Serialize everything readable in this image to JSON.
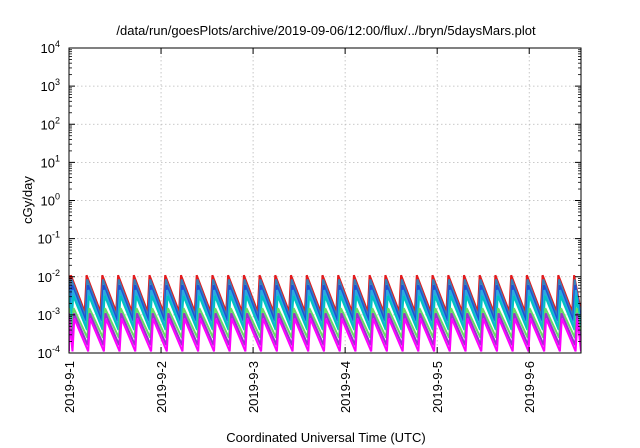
{
  "chart_data": {
    "type": "line",
    "title": "/data/run/goesPlots/archive/2019-09-06/12:00/flux/../bryn/5daysMars.plot",
    "xlabel": "Coordinated Universal Time (UTC)",
    "ylabel": "cGy/day",
    "y_scale": "log",
    "ylim": [
      0.0001,
      10000
    ],
    "y_ticks": [
      {
        "base": "10",
        "exp": "-4"
      },
      {
        "base": "10",
        "exp": "-3"
      },
      {
        "base": "10",
        "exp": "-2"
      },
      {
        "base": "10",
        "exp": "-1"
      },
      {
        "base": "10",
        "exp": "0"
      },
      {
        "base": "10",
        "exp": "1"
      },
      {
        "base": "10",
        "exp": "2"
      },
      {
        "base": "10",
        "exp": "3"
      },
      {
        "base": "10",
        "exp": "4"
      }
    ],
    "x_range": [
      "2019-09-01",
      "2019-09-06 13:30"
    ],
    "x_ticks": [
      "2019-9-1",
      "2019-9-2",
      "2019-9-3",
      "2019-9-4",
      "2019-9-5",
      "2019-9-6"
    ],
    "grid": true,
    "legend": "none",
    "sawtooth_period_hours": 4.1,
    "series": [
      {
        "color": "#e41a1c",
        "peak": 0.011,
        "trough": 0.0012,
        "phase_hours": 0.0
      },
      {
        "color": "#377eb8",
        "peak": 0.0085,
        "trough": 0.0009,
        "phase_hours": 0.15
      },
      {
        "color": "#1f4fd6",
        "peak": 0.006,
        "trough": 0.0007,
        "phase_hours": 0.3
      },
      {
        "color": "#2aa9e0",
        "peak": 0.0045,
        "trough": 0.0005,
        "phase_hours": 0.45
      },
      {
        "color": "#00c4c4",
        "peak": 0.0032,
        "trough": 0.0004,
        "phase_hours": 0.6
      },
      {
        "color": "#66dd66",
        "peak": 0.0015,
        "trough": 0.00025,
        "phase_hours": 0.7
      },
      {
        "color": "#9932cc",
        "peak": 0.0011,
        "trough": 0.00016,
        "phase_hours": 0.8
      },
      {
        "color": "#ff00ff",
        "peak": 0.0008,
        "trough": 0.00011,
        "phase_hours": 0.9
      }
    ]
  }
}
